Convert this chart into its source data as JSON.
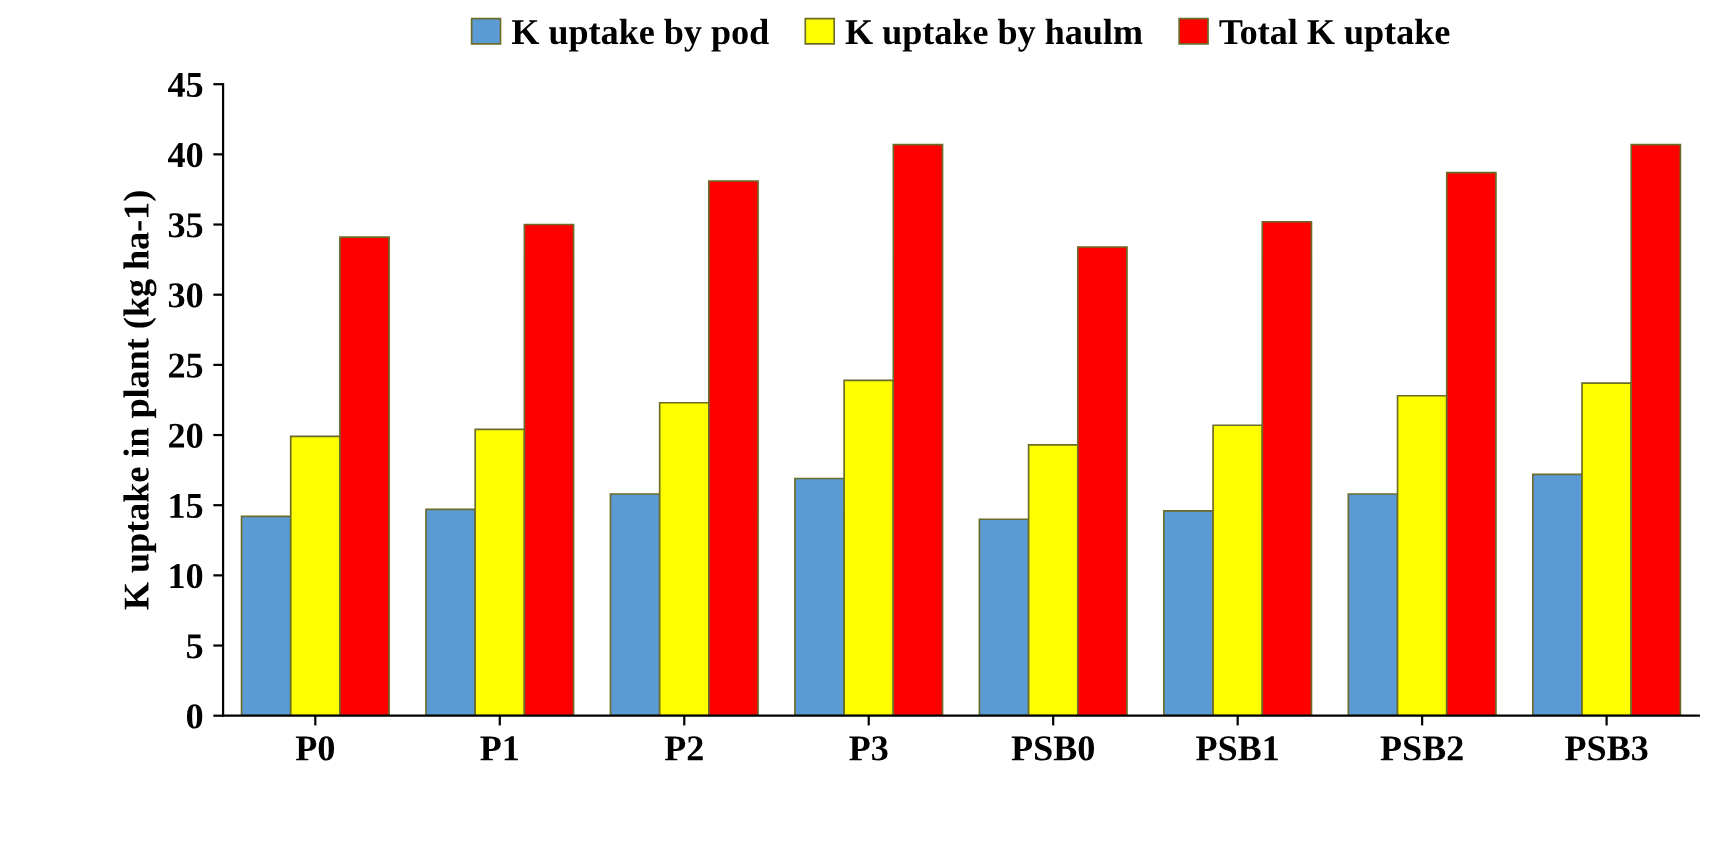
{
  "chart_data": {
    "type": "bar",
    "ylabel": "K uptake in plant (kg ha-1)",
    "categories": [
      "P0",
      "P1",
      "P2",
      "P3",
      "PSB0",
      "PSB1",
      "PSB2",
      "PSB3"
    ],
    "series": [
      {
        "name": "K uptake by pod",
        "color": "#5b9bd5",
        "values": [
          14.2,
          14.7,
          15.8,
          16.9,
          14.0,
          14.6,
          15.8,
          17.2
        ]
      },
      {
        "name": "K uptake by haulm",
        "color": "#ffff00",
        "values": [
          19.9,
          20.4,
          22.3,
          23.9,
          19.3,
          20.7,
          22.8,
          23.7
        ]
      },
      {
        "name": "Total K uptake",
        "color": "#ff0000",
        "values": [
          34.1,
          35.0,
          38.1,
          40.7,
          33.4,
          35.2,
          38.7,
          40.7
        ]
      }
    ],
    "ylim": [
      0,
      45
    ],
    "yticks": [
      0,
      5,
      10,
      15,
      20,
      25,
      30,
      35,
      40,
      45
    ],
    "grid": false,
    "legend": "top"
  }
}
